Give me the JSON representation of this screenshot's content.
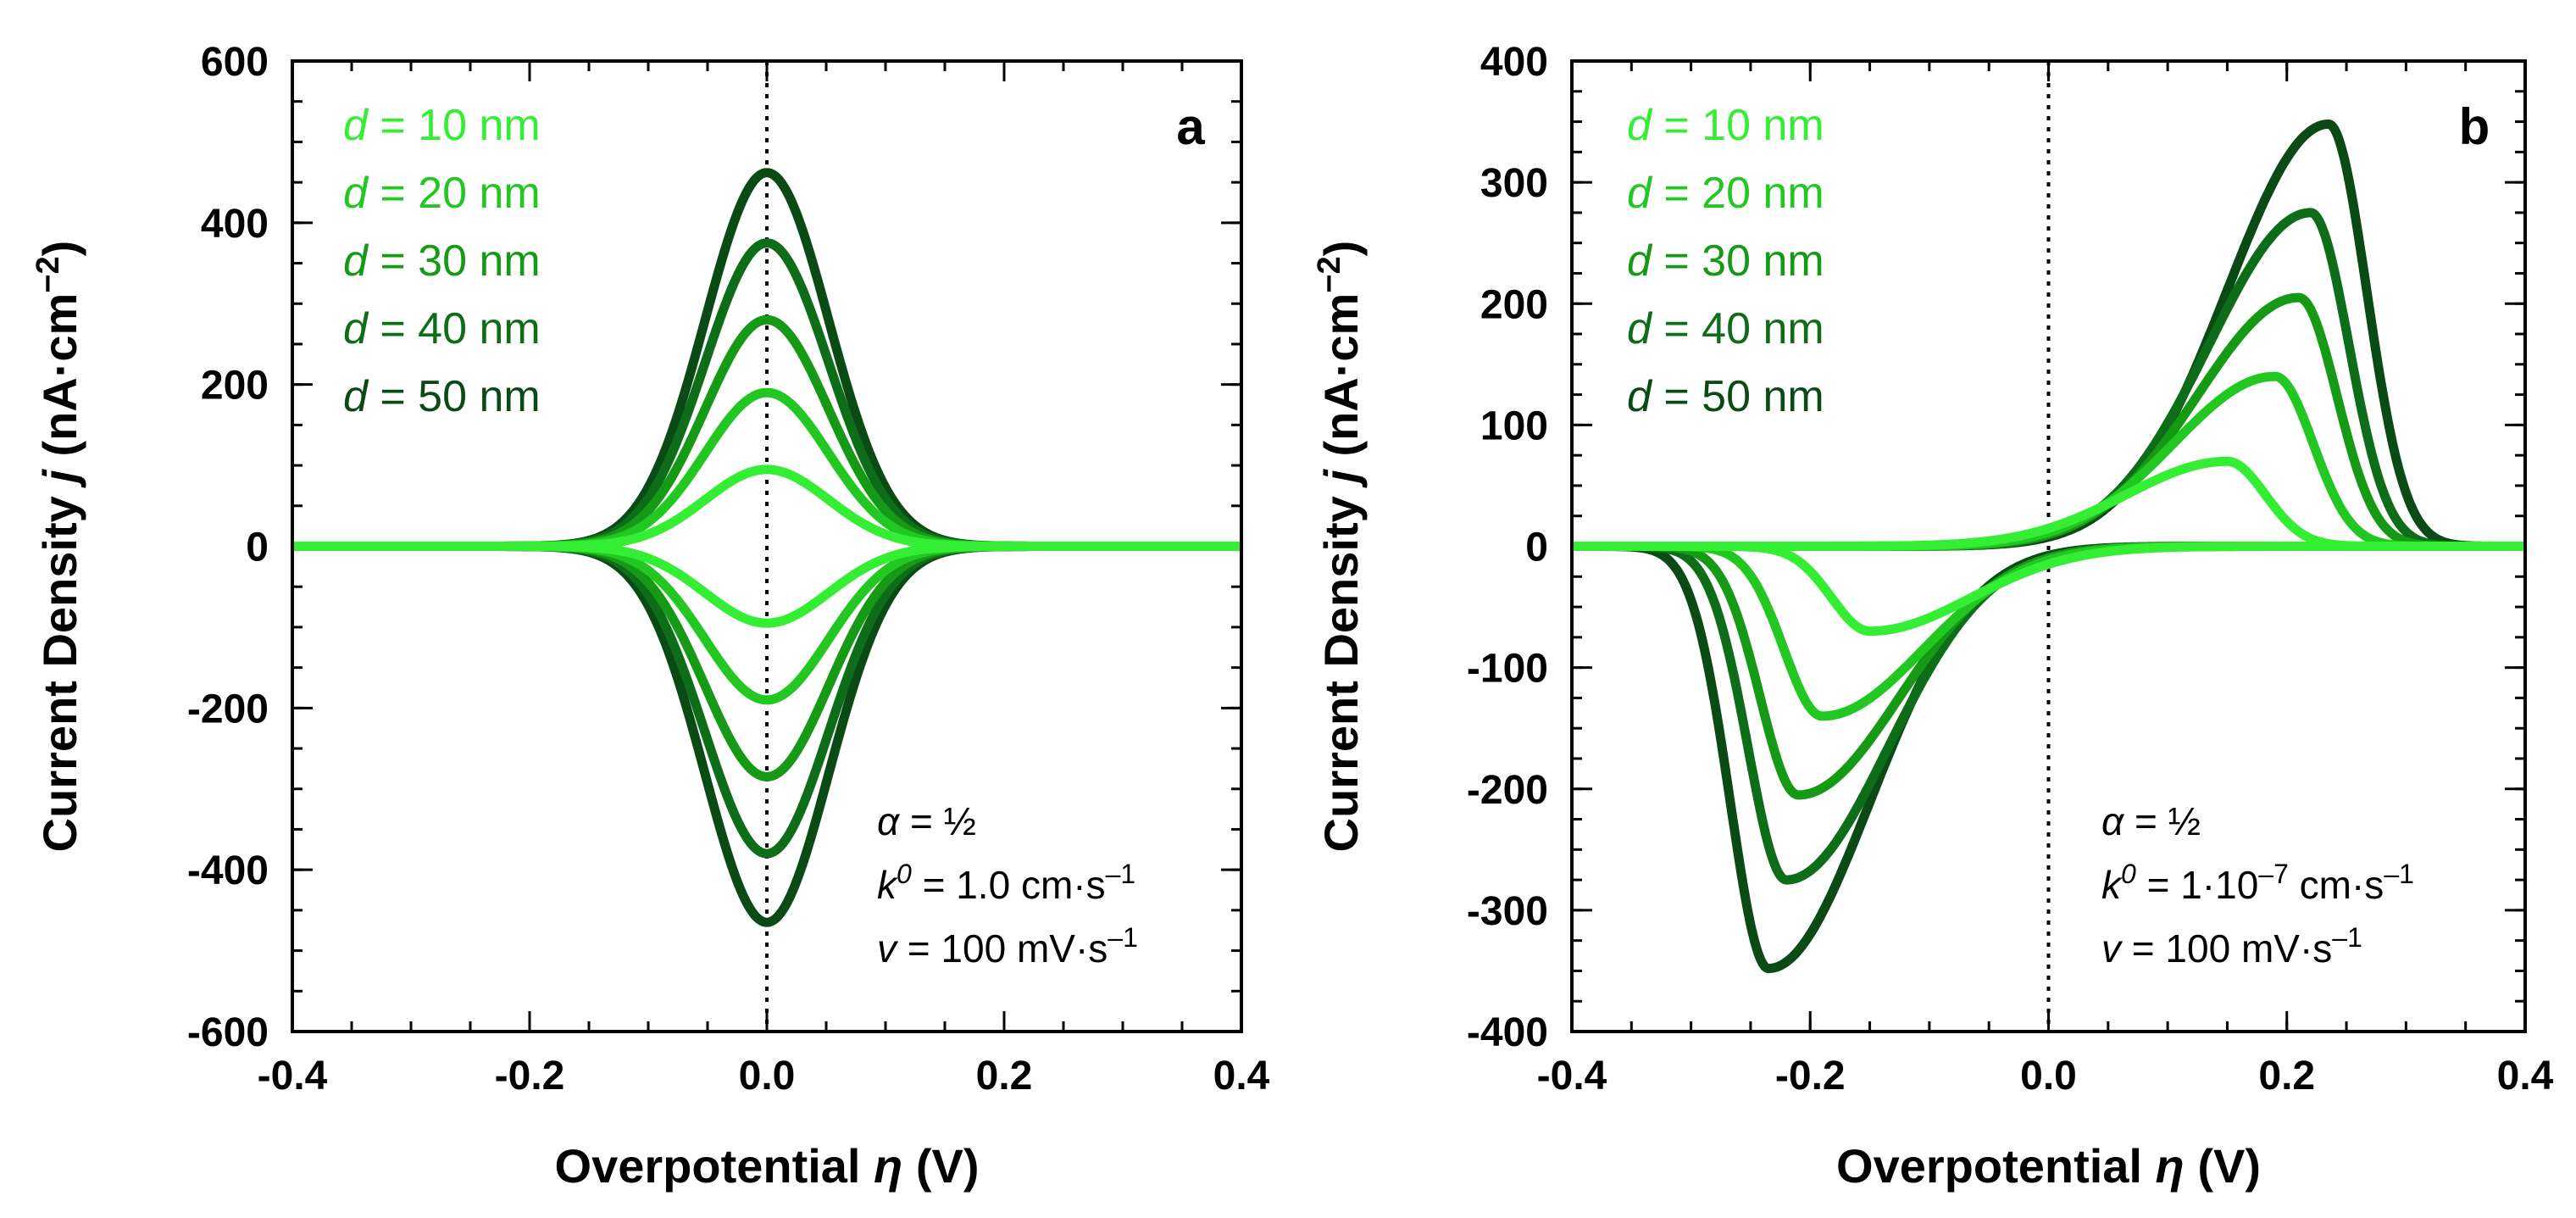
{
  "chart_data": [
    {
      "type": "line",
      "panel_label": "a",
      "xlabel_prefix": "Overpotential ",
      "xlabel_symbol": "η",
      "xlabel_suffix": " (V)",
      "ylabel_prefix": "Current Density ",
      "ylabel_symbol": "j",
      "ylabel_suffix": " (nA·cm",
      "ylabel_exp": "−2",
      "ylabel_close": ")",
      "xlim": [
        -0.4,
        0.4
      ],
      "ylim": [
        -600,
        600
      ],
      "xticks": [
        "-0.4",
        "-0.2",
        "0.0",
        "0.2",
        "0.4"
      ],
      "xtick_values": [
        -0.4,
        -0.2,
        0.0,
        0.2,
        0.4
      ],
      "yticks": [
        "600",
        "400",
        "200",
        "0",
        "-200",
        "-400",
        "-600"
      ],
      "ytick_values": [
        600,
        400,
        200,
        0,
        -200,
        -400,
        -600
      ],
      "legend": [
        {
          "var": "d",
          "text": " = 10 nm",
          "color": "#33ee33"
        },
        {
          "var": "d",
          "text": " = 20 nm",
          "color": "#22c722"
        },
        {
          "var": "d",
          "text": " = 30 nm",
          "color": "#169a16"
        },
        {
          "var": "d",
          "text": " = 40 nm",
          "color": "#0d6d18"
        },
        {
          "var": "d",
          "text": " = 50 nm",
          "color": "#0a4a14"
        }
      ],
      "params": [
        {
          "sym": "α",
          "sup": "",
          "text": " = ½",
          "sup2": "",
          "tail": ""
        },
        {
          "sym": "k",
          "sup": "0",
          "text": " = 1.0 cm·s",
          "sup2": "–1",
          "tail": ""
        },
        {
          "sym": "v",
          "sup": "",
          "text": " = 100 mV·s",
          "sup2": "–1",
          "tail": ""
        }
      ],
      "series": [
        {
          "name": "d = 10 nm",
          "color": "#33ee33",
          "peak_anodic": 95,
          "peak_cathodic": -95,
          "peak_eta_anodic": 0.0,
          "peak_eta_cathodic": 0.0,
          "width": 0.05
        },
        {
          "name": "d = 20 nm",
          "color": "#22c722",
          "peak_anodic": 190,
          "peak_cathodic": -190,
          "peak_eta_anodic": 0.0,
          "peak_eta_cathodic": 0.0,
          "width": 0.05
        },
        {
          "name": "d = 30 nm",
          "color": "#169a16",
          "peak_anodic": 280,
          "peak_cathodic": -285,
          "peak_eta_anodic": 0.0,
          "peak_eta_cathodic": 0.0,
          "width": 0.05
        },
        {
          "name": "d = 40 nm",
          "color": "#0d6d18",
          "peak_anodic": 375,
          "peak_cathodic": -380,
          "peak_eta_anodic": 0.0,
          "peak_eta_cathodic": 0.0,
          "width": 0.05
        },
        {
          "name": "d = 50 nm",
          "color": "#0a4a14",
          "peak_anodic": 462,
          "peak_cathodic": -465,
          "peak_eta_anodic": 0.0,
          "peak_eta_cathodic": 0.0,
          "width": 0.05
        }
      ]
    },
    {
      "type": "line",
      "panel_label": "b",
      "xlabel_prefix": "Overpotential ",
      "xlabel_symbol": "η",
      "xlabel_suffix": " (V)",
      "ylabel_prefix": "Current Density ",
      "ylabel_symbol": "j",
      "ylabel_suffix": " (nA·cm",
      "ylabel_exp": "−2",
      "ylabel_close": ")",
      "xlim": [
        -0.4,
        0.4
      ],
      "ylim": [
        -400,
        400
      ],
      "xticks": [
        "-0.4",
        "-0.2",
        "0.0",
        "0.2",
        "0.4"
      ],
      "xtick_values": [
        -0.4,
        -0.2,
        0.0,
        0.2,
        0.4
      ],
      "yticks": [
        "400",
        "300",
        "200",
        "100",
        "0",
        "-100",
        "-200",
        "-300",
        "-400"
      ],
      "ytick_values": [
        400,
        300,
        200,
        100,
        0,
        -100,
        -200,
        -300,
        -400
      ],
      "legend": [
        {
          "var": "d",
          "text": " = 10 nm",
          "color": "#33ee33"
        },
        {
          "var": "d",
          "text": " = 20 nm",
          "color": "#22c722"
        },
        {
          "var": "d",
          "text": " = 30 nm",
          "color": "#169a16"
        },
        {
          "var": "d",
          "text": " = 40 nm",
          "color": "#0d6d18"
        },
        {
          "var": "d",
          "text": " = 50 nm",
          "color": "#0a4a14"
        }
      ],
      "params": [
        {
          "sym": "α",
          "sup": "",
          "text": " = ½",
          "sup2": "",
          "tail": ""
        },
        {
          "sym": "k",
          "sup": "0",
          "text": " = 1·10",
          "sup2": "–7",
          "tail": " cm·s–1"
        },
        {
          "sym": "v",
          "sup": "",
          "text": " = 100 mV·s",
          "sup2": "–1",
          "tail": ""
        }
      ],
      "series": [
        {
          "name": "d = 10 nm",
          "color": "#33ee33",
          "peak_anodic": 70,
          "peak_cathodic": -70,
          "peak_eta_anodic": 0.15,
          "peak_eta_cathodic": -0.15
        },
        {
          "name": "d = 20 nm",
          "color": "#22c722",
          "peak_anodic": 140,
          "peak_cathodic": -140,
          "peak_eta_anodic": 0.19,
          "peak_eta_cathodic": -0.19
        },
        {
          "name": "d = 30 nm",
          "color": "#169a16",
          "peak_anodic": 205,
          "peak_cathodic": -205,
          "peak_eta_anodic": 0.21,
          "peak_eta_cathodic": -0.21
        },
        {
          "name": "d = 40 nm",
          "color": "#0d6d18",
          "peak_anodic": 275,
          "peak_cathodic": -275,
          "peak_eta_anodic": 0.22,
          "peak_eta_cathodic": -0.22
        },
        {
          "name": "d = 50 nm",
          "color": "#0a4a14",
          "peak_anodic": 348,
          "peak_cathodic": -348,
          "peak_eta_anodic": 0.235,
          "peak_eta_cathodic": -0.235
        }
      ]
    }
  ]
}
